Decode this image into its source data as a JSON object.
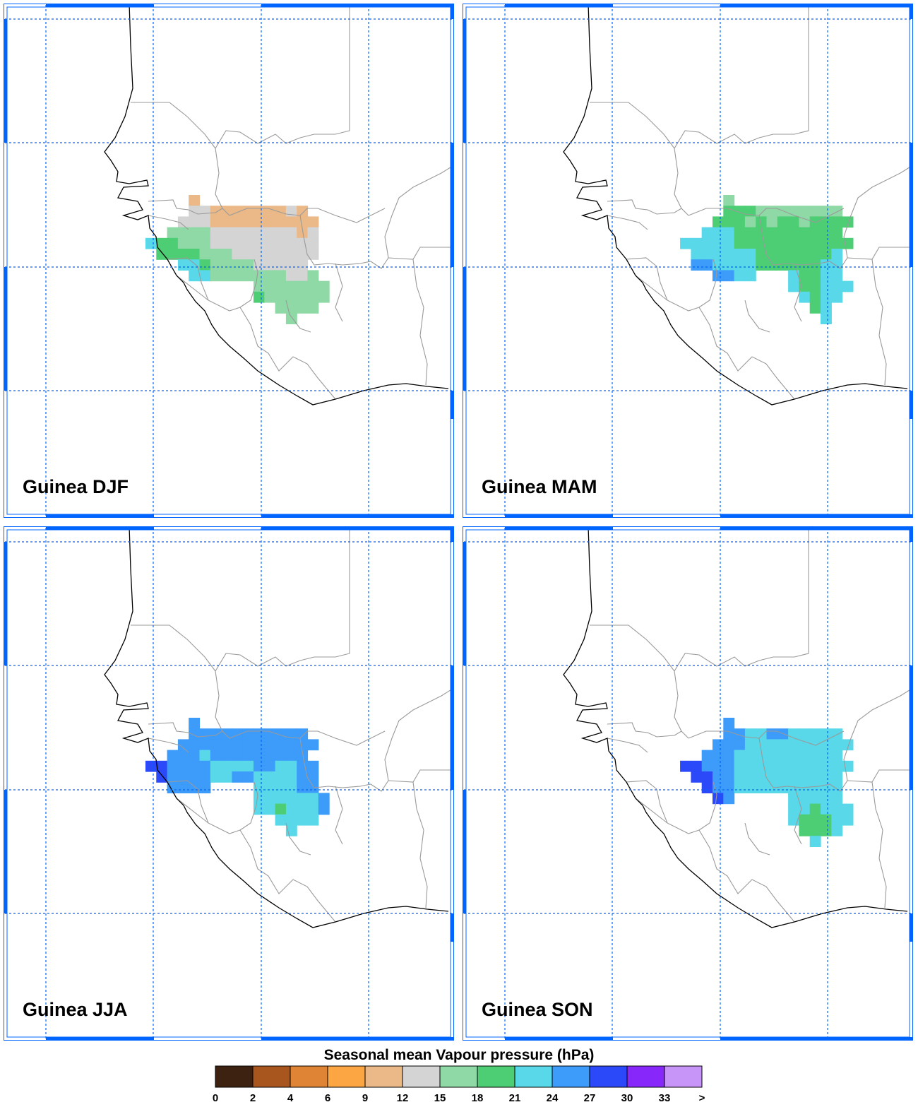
{
  "panels": [
    {
      "title": "Guinea DJF",
      "season": "DJF"
    },
    {
      "title": "Guinea MAM",
      "season": "MAM"
    },
    {
      "title": "Guinea JJA",
      "season": "JJA"
    },
    {
      "title": "Guinea SON",
      "season": "SON"
    }
  ],
  "legend": {
    "title": "Seasonal mean Vapour pressure (hPa)",
    "colors": [
      "#3d2211",
      "#a9561e",
      "#df8434",
      "#fba543",
      "#ebb888",
      "#d4d4d4",
      "#8ed9a5",
      "#4ece74",
      "#58d8e8",
      "#3d9bfa",
      "#2b48f9",
      "#8727f9",
      "#c794f8"
    ],
    "tick_labels": [
      "0",
      "2",
      "4",
      "6",
      "9",
      "12",
      "15",
      "18",
      "21",
      "24",
      "27",
      "30",
      "33",
      ">"
    ]
  },
  "colors": {
    "frame_blue": "#0064ff",
    "coast": "#000000",
    "border": "#9a9a9a"
  }
}
